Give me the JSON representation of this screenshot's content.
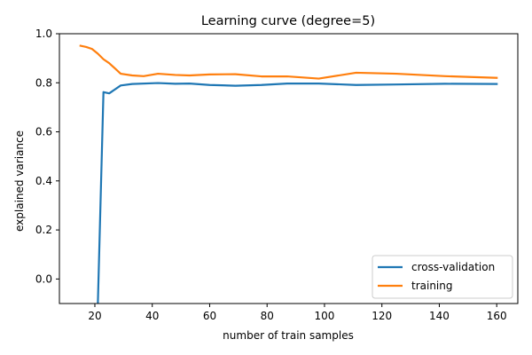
{
  "chart_data": {
    "type": "line",
    "title": "Learning curve (degree=5)",
    "xlabel": "number of train samples",
    "ylabel": "explained variance",
    "xlim": [
      7.65,
      167.35
    ],
    "ylim": [
      -0.1,
      1.0
    ],
    "xticks": [
      20,
      40,
      60,
      80,
      100,
      120,
      140,
      160
    ],
    "yticks": [
      0.0,
      0.2,
      0.4,
      0.6,
      0.8,
      1.0
    ],
    "grid": false,
    "legend_position": "lower-right",
    "series": [
      {
        "name": "cross-validation",
        "color": "#1f77b4",
        "x": [
          21,
          23,
          25,
          29,
          33,
          42,
          48,
          53,
          60,
          69,
          78,
          87,
          98,
          111,
          125,
          142,
          160
        ],
        "y": [
          -0.12,
          0.762,
          0.757,
          0.789,
          0.795,
          0.799,
          0.796,
          0.797,
          0.791,
          0.788,
          0.791,
          0.797,
          0.797,
          0.791,
          0.793,
          0.796,
          0.795
        ]
      },
      {
        "name": "training",
        "color": "#ff7f0e",
        "x": [
          15,
          17,
          19,
          21,
          23,
          25,
          29,
          33,
          37,
          42,
          48,
          53,
          60,
          69,
          78,
          87,
          98,
          111,
          125,
          142,
          160
        ],
        "y": [
          0.951,
          0.946,
          0.938,
          0.919,
          0.896,
          0.88,
          0.837,
          0.83,
          0.827,
          0.837,
          0.832,
          0.83,
          0.834,
          0.835,
          0.826,
          0.826,
          0.817,
          0.841,
          0.837,
          0.827,
          0.82
        ]
      }
    ]
  }
}
